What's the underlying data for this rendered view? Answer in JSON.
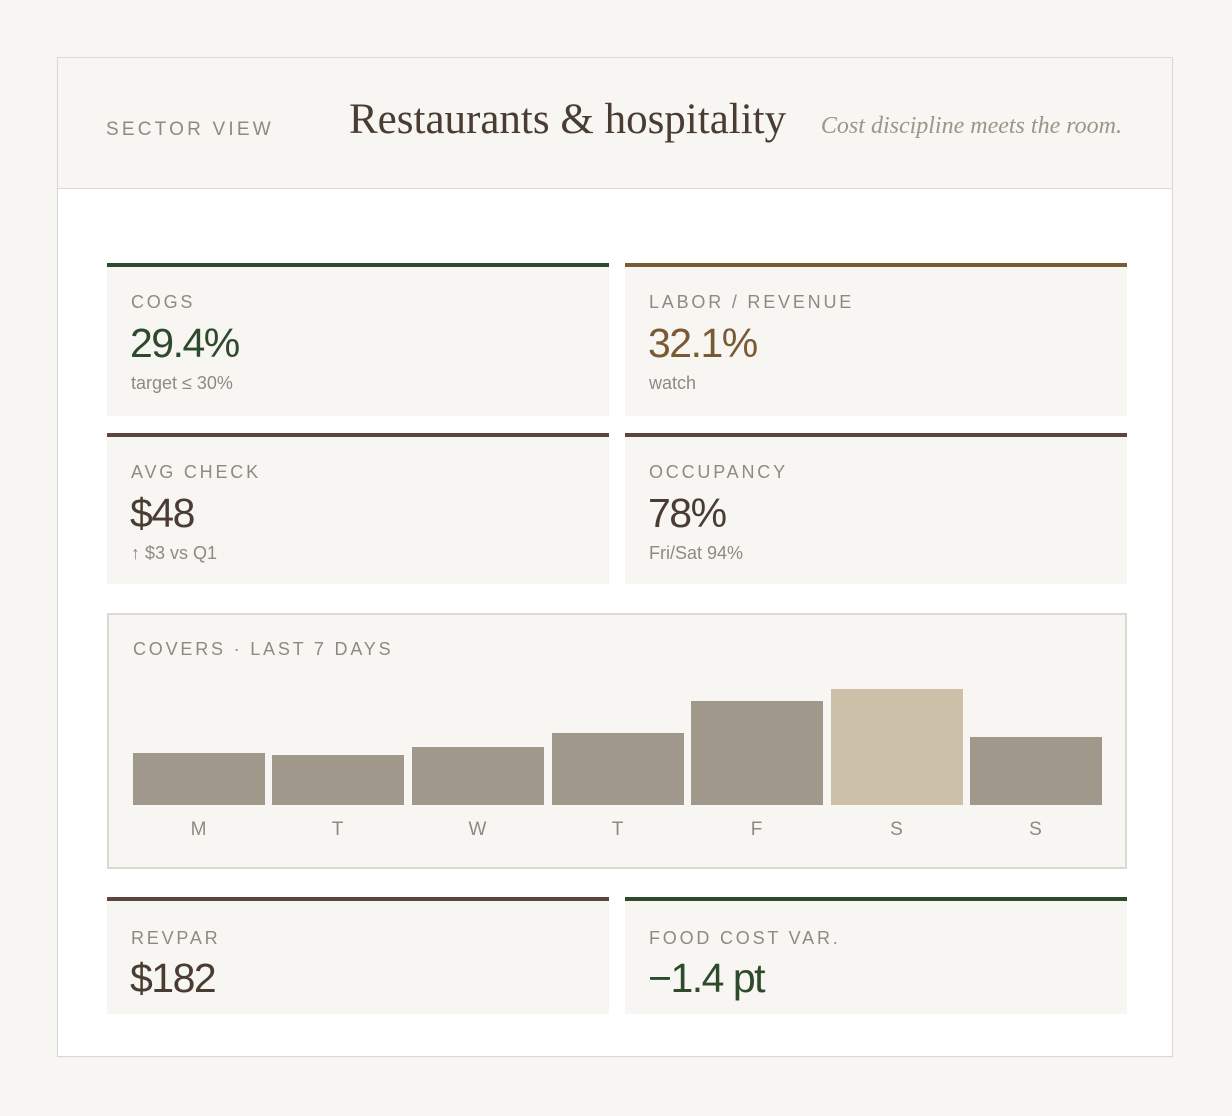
{
  "header": {
    "eyebrow": "SECTOR VIEW",
    "title": "Restaurants & hospitality",
    "tagline": "Cost discipline meets the room."
  },
  "kpis": {
    "cogs": {
      "label": "COGS",
      "value": "29.4%",
      "sub": "target ≤ 30%",
      "accent": "#2d4a2b"
    },
    "labor": {
      "label": "LABOR / REVENUE",
      "value": "32.1%",
      "sub": "watch",
      "accent": "#7a5a33"
    },
    "avg_check": {
      "label": "AVG CHECK",
      "value": "$48",
      "sub": "↑ $3 vs Q1",
      "accent": "#5a463c"
    },
    "occupancy": {
      "label": "OCCUPANCY",
      "value": "78%",
      "sub": "Fri/Sat 94%",
      "accent": "#5a463c"
    },
    "revpar": {
      "label": "REVPAR",
      "value": "$182",
      "accent": "#5a463c"
    },
    "food_cost_var": {
      "label": "FOOD COST VAR.",
      "value": "−1.4 pt",
      "accent": "#2d4a2b"
    }
  },
  "chart_data": {
    "type": "bar",
    "title": "COVERS · LAST 7 DAYS",
    "categories": [
      "M",
      "T",
      "W",
      "T",
      "F",
      "S",
      "S"
    ],
    "values": [
      52,
      50,
      58,
      72,
      104,
      116,
      68
    ],
    "ylim": [
      0,
      116
    ],
    "highlight_index": 5,
    "bar_color": "#9f988b",
    "highlight_color": "#cdc0a8"
  },
  "colors": {
    "background": "#f8f7f3",
    "panel": "#f7f6f2",
    "text_primary": "#4a3c33",
    "text_muted": "#8f8a80",
    "green_value": "#2d4a2b",
    "brown_value": "#7a5a33"
  }
}
